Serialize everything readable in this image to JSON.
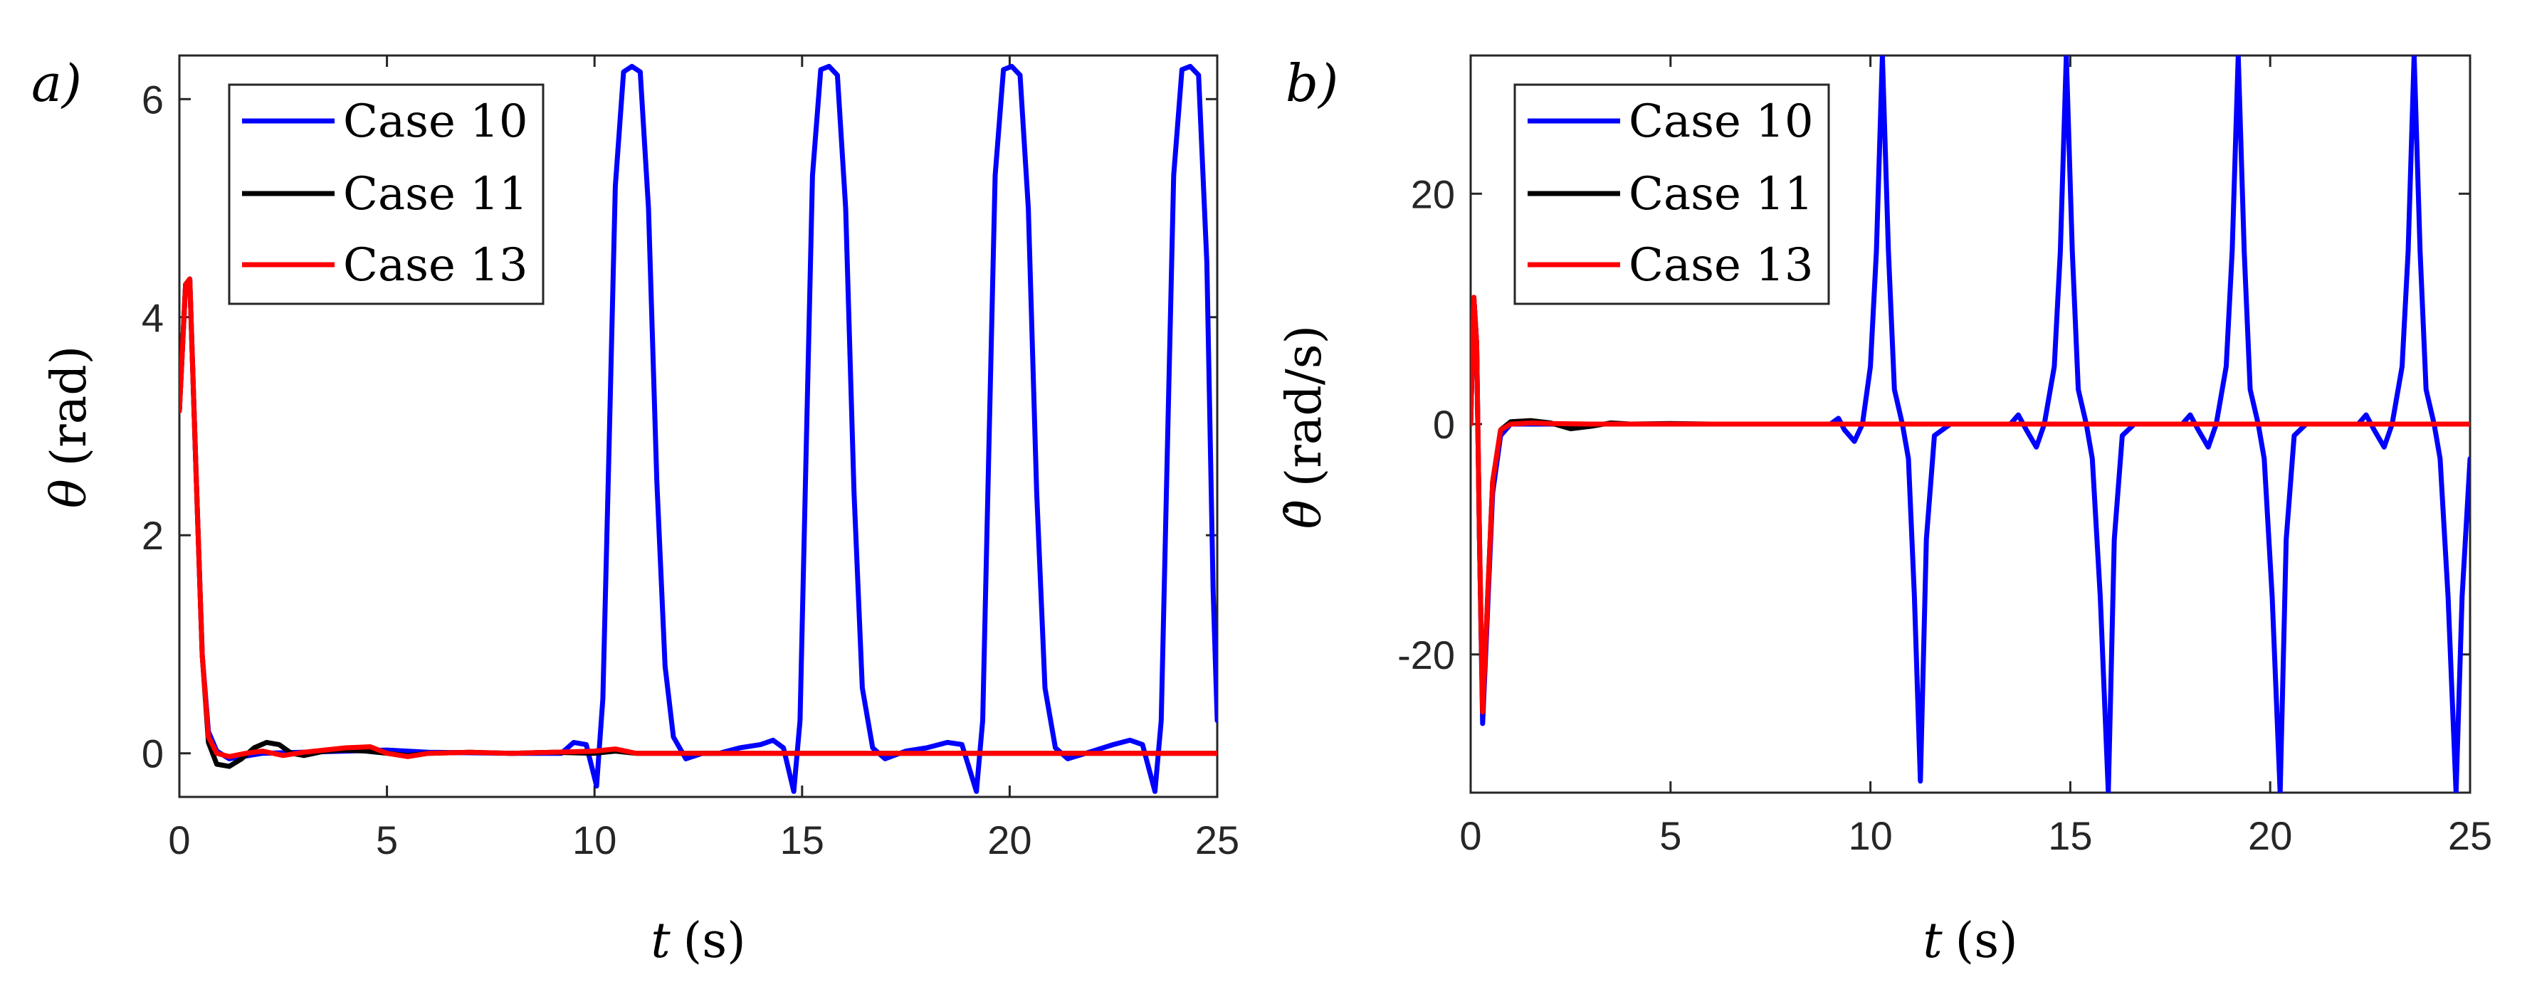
{
  "chart_data": [
    {
      "panel_label": "a)",
      "type": "line",
      "xlabel_symbol": "t",
      "xlabel_unit": "(s)",
      "ylabel_symbol": "θ",
      "ylabel_unit": "(rad)",
      "xlim": [
        0,
        25
      ],
      "ylim": [
        -0.4,
        6.4
      ],
      "xticks": [
        0,
        5,
        10,
        15,
        20,
        25
      ],
      "yticks": [
        0,
        2,
        4,
        6
      ],
      "xtick_labels": [
        "0",
        "5",
        "10",
        "15",
        "20",
        "25"
      ],
      "ytick_labels": [
        "0",
        "2",
        "4",
        "6"
      ],
      "legend_position": "top-left",
      "series": [
        {
          "name": "Case 10",
          "color": "#0000FF",
          "points": [
            [
              0,
              3.14
            ],
            [
              0.15,
              4.3
            ],
            [
              0.25,
              4.35
            ],
            [
              0.4,
              2.6
            ],
            [
              0.55,
              0.9
            ],
            [
              0.7,
              0.2
            ],
            [
              0.9,
              0.02
            ],
            [
              1.2,
              -0.05
            ],
            [
              2,
              0
            ],
            [
              4,
              0.02
            ],
            [
              5,
              0.03
            ],
            [
              6,
              0.01
            ],
            [
              8,
              0.0
            ],
            [
              9.2,
              0.0
            ],
            [
              9.5,
              0.1
            ],
            [
              9.8,
              0.08
            ],
            [
              10.05,
              -0.3
            ],
            [
              10.2,
              0.5
            ],
            [
              10.35,
              2.8
            ],
            [
              10.5,
              5.2
            ],
            [
              10.7,
              6.25
            ],
            [
              10.9,
              6.3
            ],
            [
              11.1,
              6.25
            ],
            [
              11.3,
              5.0
            ],
            [
              11.5,
              2.5
            ],
            [
              11.7,
              0.8
            ],
            [
              11.9,
              0.15
            ],
            [
              12.2,
              -0.05
            ],
            [
              12.6,
              0.0
            ],
            [
              13,
              0.0
            ],
            [
              13.5,
              0.05
            ],
            [
              14,
              0.08
            ],
            [
              14.3,
              0.12
            ],
            [
              14.55,
              0.05
            ],
            [
              14.8,
              -0.35
            ],
            [
              14.95,
              0.3
            ],
            [
              15.1,
              2.8
            ],
            [
              15.25,
              5.3
            ],
            [
              15.45,
              6.27
            ],
            [
              15.65,
              6.3
            ],
            [
              15.85,
              6.22
            ],
            [
              16.05,
              5.0
            ],
            [
              16.25,
              2.4
            ],
            [
              16.45,
              0.6
            ],
            [
              16.7,
              0.05
            ],
            [
              17.0,
              -0.05
            ],
            [
              17.5,
              0.02
            ],
            [
              18.0,
              0.05
            ],
            [
              18.5,
              0.1
            ],
            [
              18.85,
              0.08
            ],
            [
              19.2,
              -0.35
            ],
            [
              19.35,
              0.3
            ],
            [
              19.5,
              2.8
            ],
            [
              19.65,
              5.3
            ],
            [
              19.85,
              6.27
            ],
            [
              20.05,
              6.3
            ],
            [
              20.25,
              6.22
            ],
            [
              20.45,
              5.0
            ],
            [
              20.65,
              2.4
            ],
            [
              20.85,
              0.6
            ],
            [
              21.1,
              0.05
            ],
            [
              21.4,
              -0.05
            ],
            [
              22.0,
              0.02
            ],
            [
              22.5,
              0.08
            ],
            [
              22.9,
              0.12
            ],
            [
              23.2,
              0.08
            ],
            [
              23.5,
              -0.35
            ],
            [
              23.65,
              0.3
            ],
            [
              23.8,
              2.8
            ],
            [
              23.95,
              5.3
            ],
            [
              24.15,
              6.27
            ],
            [
              24.35,
              6.3
            ],
            [
              24.55,
              6.22
            ],
            [
              24.75,
              4.5
            ],
            [
              24.9,
              1.5
            ],
            [
              25,
              0.3
            ]
          ]
        },
        {
          "name": "Case 11",
          "color": "#000000",
          "points": [
            [
              0,
              3.14
            ],
            [
              0.15,
              4.3
            ],
            [
              0.25,
              4.35
            ],
            [
              0.4,
              2.6
            ],
            [
              0.55,
              0.9
            ],
            [
              0.7,
              0.1
            ],
            [
              0.9,
              -0.1
            ],
            [
              1.2,
              -0.12
            ],
            [
              1.5,
              -0.05
            ],
            [
              1.8,
              0.05
            ],
            [
              2.1,
              0.1
            ],
            [
              2.4,
              0.08
            ],
            [
              2.7,
              0.0
            ],
            [
              3.0,
              -0.02
            ],
            [
              3.5,
              0.02
            ],
            [
              4.0,
              0.03
            ],
            [
              4.5,
              0.02
            ],
            [
              5,
              0.0
            ],
            [
              5.5,
              -0.02
            ],
            [
              6,
              0.0
            ],
            [
              7,
              0.01
            ],
            [
              8,
              0.0
            ],
            [
              9,
              0.01
            ],
            [
              10,
              0.0
            ],
            [
              10.5,
              0.02
            ],
            [
              11,
              0.0
            ],
            [
              12,
              0.0
            ],
            [
              15,
              0.0
            ],
            [
              25,
              0.0
            ]
          ]
        },
        {
          "name": "Case 13",
          "color": "#FF0000",
          "points": [
            [
              0,
              3.14
            ],
            [
              0.15,
              4.3
            ],
            [
              0.25,
              4.35
            ],
            [
              0.4,
              2.6
            ],
            [
              0.55,
              0.9
            ],
            [
              0.7,
              0.15
            ],
            [
              0.9,
              0.0
            ],
            [
              1.2,
              -0.03
            ],
            [
              1.6,
              0.0
            ],
            [
              2.0,
              0.02
            ],
            [
              2.5,
              -0.02
            ],
            [
              3.0,
              0.01
            ],
            [
              3.5,
              0.03
            ],
            [
              4.0,
              0.05
            ],
            [
              4.6,
              0.06
            ],
            [
              5.0,
              0.0
            ],
            [
              5.5,
              -0.03
            ],
            [
              6.0,
              0.0
            ],
            [
              7,
              0.01
            ],
            [
              8,
              0.0
            ],
            [
              9,
              0.01
            ],
            [
              10,
              0.02
            ],
            [
              10.5,
              0.04
            ],
            [
              11,
              0.0
            ],
            [
              12,
              0.0
            ],
            [
              15,
              0.0
            ],
            [
              25,
              0.0
            ]
          ]
        }
      ]
    },
    {
      "panel_label": "b)",
      "type": "line",
      "xlabel_symbol": "t",
      "xlabel_unit": "(s)",
      "ylabel_symbol": "θ̇",
      "ylabel_unit": "(rad/s)",
      "xlim": [
        0,
        25
      ],
      "ylim": [
        -32,
        32
      ],
      "xticks": [
        0,
        5,
        10,
        15,
        20,
        25
      ],
      "yticks": [
        -20,
        0,
        20
      ],
      "xtick_labels": [
        "0",
        "5",
        "10",
        "15",
        "20",
        "25"
      ],
      "ytick_labels": [
        "-20",
        "0",
        "20"
      ],
      "legend_position": "top-left",
      "series": [
        {
          "name": "Case 10",
          "color": "#0000FF",
          "points": [
            [
              0,
              0
            ],
            [
              0.08,
              11
            ],
            [
              0.15,
              7
            ],
            [
              0.22,
              -10
            ],
            [
              0.3,
              -26
            ],
            [
              0.4,
              -18
            ],
            [
              0.55,
              -6
            ],
            [
              0.75,
              -1
            ],
            [
              1.0,
              0
            ],
            [
              2,
              0
            ],
            [
              5,
              0
            ],
            [
              9.0,
              0
            ],
            [
              9.2,
              0.5
            ],
            [
              9.35,
              -0.5
            ],
            [
              9.6,
              -1.5
            ],
            [
              9.8,
              0
            ],
            [
              10.0,
              5
            ],
            [
              10.15,
              15
            ],
            [
              10.3,
              32
            ],
            [
              10.45,
              15
            ],
            [
              10.6,
              3
            ],
            [
              10.8,
              0
            ],
            [
              10.95,
              -3
            ],
            [
              11.1,
              -15
            ],
            [
              11.25,
              -31
            ],
            [
              11.4,
              -10
            ],
            [
              11.6,
              -1
            ],
            [
              12,
              0
            ],
            [
              13.5,
              0
            ],
            [
              13.7,
              0.8
            ],
            [
              13.9,
              -0.5
            ],
            [
              14.15,
              -2
            ],
            [
              14.35,
              0
            ],
            [
              14.6,
              5
            ],
            [
              14.75,
              15
            ],
            [
              14.9,
              32
            ],
            [
              15.05,
              15
            ],
            [
              15.2,
              3
            ],
            [
              15.4,
              0
            ],
            [
              15.55,
              -3
            ],
            [
              15.75,
              -15
            ],
            [
              15.95,
              -32
            ],
            [
              16.1,
              -10
            ],
            [
              16.3,
              -1
            ],
            [
              16.6,
              0
            ],
            [
              17.8,
              0
            ],
            [
              18.0,
              0.8
            ],
            [
              18.2,
              -0.5
            ],
            [
              18.45,
              -2
            ],
            [
              18.65,
              0
            ],
            [
              18.9,
              5
            ],
            [
              19.05,
              15
            ],
            [
              19.2,
              32
            ],
            [
              19.35,
              15
            ],
            [
              19.5,
              3
            ],
            [
              19.7,
              0
            ],
            [
              19.85,
              -3
            ],
            [
              20.05,
              -15
            ],
            [
              20.25,
              -32
            ],
            [
              20.4,
              -10
            ],
            [
              20.6,
              -1
            ],
            [
              20.9,
              0
            ],
            [
              22.2,
              0
            ],
            [
              22.4,
              0.8
            ],
            [
              22.6,
              -0.5
            ],
            [
              22.85,
              -2
            ],
            [
              23.05,
              0
            ],
            [
              23.3,
              5
            ],
            [
              23.45,
              15
            ],
            [
              23.6,
              32
            ],
            [
              23.75,
              15
            ],
            [
              23.9,
              3
            ],
            [
              24.1,
              0
            ],
            [
              24.25,
              -3
            ],
            [
              24.45,
              -15
            ],
            [
              24.65,
              -32
            ],
            [
              24.8,
              -15
            ],
            [
              25,
              -3
            ]
          ]
        },
        {
          "name": "Case 11",
          "color": "#000000",
          "points": [
            [
              0,
              0
            ],
            [
              0.08,
              11
            ],
            [
              0.15,
              7
            ],
            [
              0.22,
              -10
            ],
            [
              0.3,
              -25
            ],
            [
              0.4,
              -17
            ],
            [
              0.55,
              -5
            ],
            [
              0.75,
              -0.5
            ],
            [
              1.0,
              0.2
            ],
            [
              1.5,
              0.3
            ],
            [
              2.0,
              0.1
            ],
            [
              2.5,
              -0.4
            ],
            [
              3.0,
              -0.2
            ],
            [
              3.5,
              0.1
            ],
            [
              4.0,
              0.0
            ],
            [
              5,
              0.05
            ],
            [
              6,
              0
            ],
            [
              25,
              0
            ]
          ]
        },
        {
          "name": "Case 13",
          "color": "#FF0000",
          "points": [
            [
              0,
              0
            ],
            [
              0.08,
              11
            ],
            [
              0.15,
              7
            ],
            [
              0.22,
              -10
            ],
            [
              0.3,
              -25
            ],
            [
              0.4,
              -17
            ],
            [
              0.55,
              -5
            ],
            [
              0.75,
              -0.5
            ],
            [
              1.0,
              0.0
            ],
            [
              1.5,
              0.1
            ],
            [
              2.0,
              0.05
            ],
            [
              3,
              0
            ],
            [
              25,
              0
            ]
          ]
        }
      ]
    }
  ]
}
